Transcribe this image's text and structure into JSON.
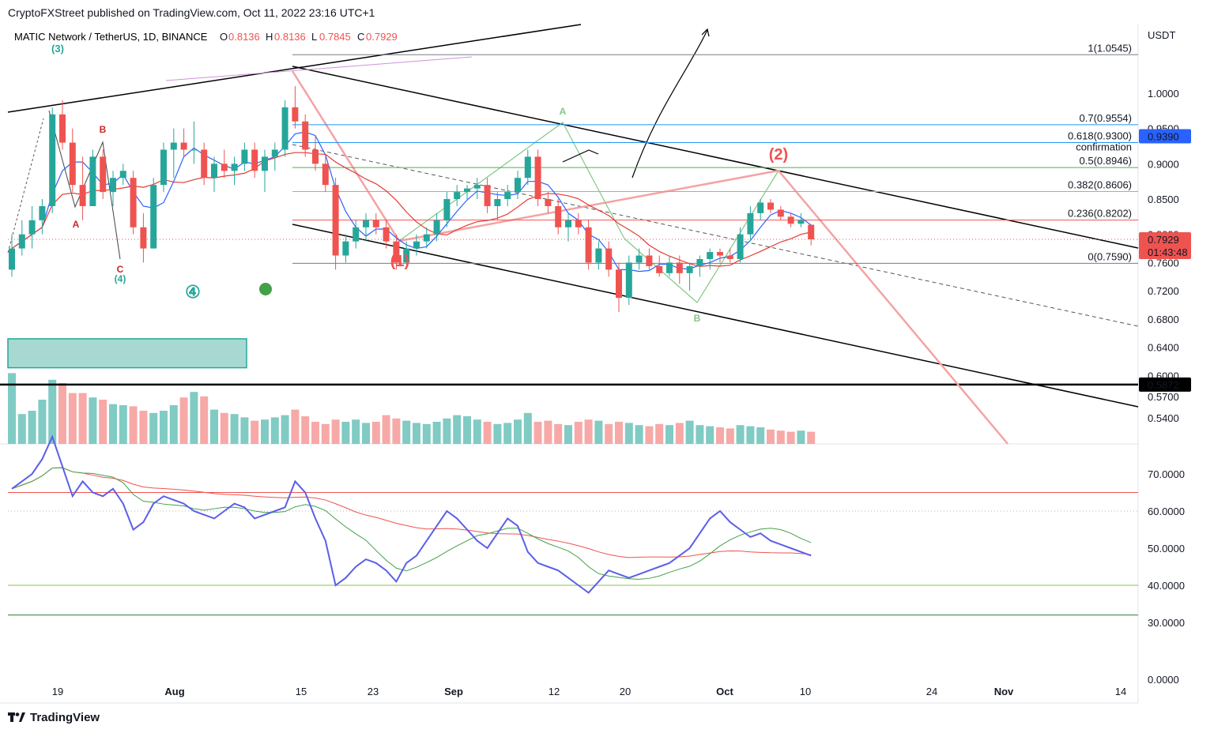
{
  "header": {
    "published": "CryptoFXStreet published on TradingView.com, Oct 11, 2022 23:16 UTC+1"
  },
  "legend": {
    "symbol": "MATIC Network / TetherUS, 1D, BINANCE",
    "o_label": "O",
    "o_value": "0.8136",
    "h_label": "H",
    "h_value": "0.8136",
    "l_label": "L",
    "l_value": "0.7845",
    "c_label": "C",
    "c_value": "0.7929"
  },
  "currency": "USDT",
  "footer": {
    "brand": "TradingView"
  },
  "colors": {
    "up": "#26a69a",
    "down": "#ef5350",
    "vol_up": "#80cbc4",
    "vol_down": "#f7a9a7",
    "rsi": "#5b5fe8"
  },
  "chart_data": {
    "type": "candlestick",
    "title": "MATIC Network / TetherUS, 1D, BINANCE",
    "price_axis": {
      "ticks": [
        "1.0000",
        "0.9500",
        "0.9000",
        "0.8500",
        "0.8000",
        "0.7600",
        "0.7200",
        "0.6800",
        "0.6400",
        "0.6000",
        "0.5700",
        "0.5400"
      ],
      "tick_values": [
        1.0,
        0.95,
        0.9,
        0.85,
        0.8,
        0.76,
        0.72,
        0.68,
        0.64,
        0.6,
        0.57,
        0.54
      ]
    },
    "date_axis": [
      "19",
      "Aug",
      "15",
      "23",
      "Sep",
      "12",
      "20",
      "Oct",
      "10",
      "24",
      "Nov",
      "14"
    ],
    "price_badges": [
      {
        "label": "0.9390",
        "value": 0.939,
        "color": "#2962ff"
      },
      {
        "label": "0.7929",
        "value": 0.7929,
        "color": "#ef5350"
      },
      {
        "label": "01:43:48",
        "value": 0.7929,
        "color": "#ef5350"
      },
      {
        "label": "0.5872",
        "value": 0.5872,
        "color": "#000000"
      }
    ],
    "fib_levels": [
      {
        "label": "1(1.0545)",
        "value": 1.0545,
        "color": "#787b86"
      },
      {
        "label": "0.7(0.9554)",
        "value": 0.9554,
        "color": "#2196f3"
      },
      {
        "label": "0.618(0.9300)",
        "value": 0.93,
        "color": "#2196f3"
      },
      {
        "label": "0.5(0.8946)",
        "value": 0.8946,
        "color": "#4caf50"
      },
      {
        "label": "0.382(0.8606)",
        "value": 0.8606,
        "color": "#81c784"
      },
      {
        "label": "0.236(0.8202)",
        "value": 0.8202,
        "color": "#ef5350"
      },
      {
        "label": "0(0.7590)",
        "value": 0.759,
        "color": "#787b86"
      }
    ],
    "confirmation_label": "confirmation",
    "wave_labels": [
      {
        "text": "(3)",
        "color": "#26a69a"
      },
      {
        "text": "A",
        "color": "#c62828"
      },
      {
        "text": "B",
        "color": "#c62828"
      },
      {
        "text": "C",
        "color": "#c62828"
      },
      {
        "text": "(4)",
        "color": "#26a69a"
      },
      {
        "text": "(1)",
        "color": "#ef5350"
      },
      {
        "text": "(2)",
        "color": "#ef5350"
      },
      {
        "text": "A",
        "color": "#81c784"
      },
      {
        "text": "B",
        "color": "#81c784"
      },
      {
        "text": "④",
        "color": "#26a69a"
      }
    ],
    "candles": [
      [
        0.75,
        0.8,
        0.74,
        0.78
      ],
      [
        0.78,
        0.82,
        0.77,
        0.8
      ],
      [
        0.8,
        0.84,
        0.78,
        0.82
      ],
      [
        0.82,
        0.85,
        0.8,
        0.84
      ],
      [
        0.84,
        0.98,
        0.83,
        0.97
      ],
      [
        0.97,
        0.99,
        0.92,
        0.93
      ],
      [
        0.93,
        0.95,
        0.86,
        0.87
      ],
      [
        0.87,
        0.91,
        0.82,
        0.84
      ],
      [
        0.84,
        0.92,
        0.84,
        0.91
      ],
      [
        0.91,
        0.92,
        0.85,
        0.86
      ],
      [
        0.86,
        0.89,
        0.84,
        0.88
      ],
      [
        0.88,
        0.9,
        0.87,
        0.89
      ],
      [
        0.88,
        0.89,
        0.8,
        0.81
      ],
      [
        0.81,
        0.83,
        0.76,
        0.78
      ],
      [
        0.78,
        0.88,
        0.78,
        0.87
      ],
      [
        0.87,
        0.93,
        0.86,
        0.92
      ],
      [
        0.92,
        0.95,
        0.88,
        0.93
      ],
      [
        0.93,
        0.95,
        0.91,
        0.92
      ],
      [
        0.92,
        0.96,
        0.9,
        0.92
      ],
      [
        0.92,
        0.93,
        0.87,
        0.88
      ],
      [
        0.88,
        0.91,
        0.86,
        0.9
      ],
      [
        0.9,
        0.92,
        0.88,
        0.89
      ],
      [
        0.89,
        0.91,
        0.87,
        0.9
      ],
      [
        0.9,
        0.93,
        0.89,
        0.92
      ],
      [
        0.92,
        0.93,
        0.88,
        0.89
      ],
      [
        0.89,
        0.92,
        0.86,
        0.91
      ],
      [
        0.91,
        0.93,
        0.89,
        0.92
      ],
      [
        0.92,
        0.99,
        0.91,
        0.98
      ],
      [
        0.98,
        1.01,
        0.95,
        0.96
      ],
      [
        0.96,
        0.97,
        0.91,
        0.92
      ],
      [
        0.92,
        0.94,
        0.89,
        0.9
      ],
      [
        0.9,
        0.91,
        0.86,
        0.87
      ],
      [
        0.87,
        0.88,
        0.75,
        0.77
      ],
      [
        0.77,
        0.8,
        0.76,
        0.79
      ],
      [
        0.79,
        0.82,
        0.78,
        0.81
      ],
      [
        0.81,
        0.83,
        0.79,
        0.82
      ],
      [
        0.82,
        0.83,
        0.8,
        0.81
      ],
      [
        0.81,
        0.82,
        0.78,
        0.79
      ],
      [
        0.79,
        0.8,
        0.75,
        0.76
      ],
      [
        0.76,
        0.79,
        0.76,
        0.78
      ],
      [
        0.78,
        0.8,
        0.77,
        0.79
      ],
      [
        0.79,
        0.81,
        0.78,
        0.8
      ],
      [
        0.8,
        0.83,
        0.79,
        0.82
      ],
      [
        0.82,
        0.86,
        0.81,
        0.85
      ],
      [
        0.85,
        0.87,
        0.84,
        0.86
      ],
      [
        0.86,
        0.87,
        0.85,
        0.865
      ],
      [
        0.865,
        0.88,
        0.85,
        0.87
      ],
      [
        0.87,
        0.88,
        0.83,
        0.84
      ],
      [
        0.84,
        0.86,
        0.82,
        0.85
      ],
      [
        0.85,
        0.87,
        0.84,
        0.86
      ],
      [
        0.86,
        0.89,
        0.85,
        0.88
      ],
      [
        0.88,
        0.92,
        0.87,
        0.91
      ],
      [
        0.91,
        0.92,
        0.84,
        0.85
      ],
      [
        0.85,
        0.86,
        0.83,
        0.84
      ],
      [
        0.84,
        0.85,
        0.8,
        0.81
      ],
      [
        0.81,
        0.83,
        0.79,
        0.82
      ],
      [
        0.82,
        0.83,
        0.8,
        0.81
      ],
      [
        0.81,
        0.82,
        0.75,
        0.76
      ],
      [
        0.76,
        0.79,
        0.75,
        0.78
      ],
      [
        0.78,
        0.79,
        0.74,
        0.75
      ],
      [
        0.75,
        0.76,
        0.69,
        0.71
      ],
      [
        0.71,
        0.77,
        0.7,
        0.76
      ],
      [
        0.76,
        0.78,
        0.75,
        0.77
      ],
      [
        0.77,
        0.78,
        0.75,
        0.755
      ],
      [
        0.755,
        0.77,
        0.74,
        0.745
      ],
      [
        0.745,
        0.77,
        0.74,
        0.76
      ],
      [
        0.76,
        0.77,
        0.73,
        0.745
      ],
      [
        0.745,
        0.76,
        0.72,
        0.755
      ],
      [
        0.755,
        0.77,
        0.74,
        0.765
      ],
      [
        0.765,
        0.78,
        0.75,
        0.775
      ],
      [
        0.775,
        0.78,
        0.76,
        0.77
      ],
      [
        0.77,
        0.78,
        0.76,
        0.765
      ],
      [
        0.765,
        0.81,
        0.76,
        0.8
      ],
      [
        0.8,
        0.84,
        0.79,
        0.83
      ],
      [
        0.83,
        0.85,
        0.82,
        0.845
      ],
      [
        0.845,
        0.85,
        0.83,
        0.835
      ],
      [
        0.835,
        0.84,
        0.82,
        0.825
      ],
      [
        0.825,
        0.83,
        0.81,
        0.815
      ],
      [
        0.815,
        0.83,
        0.81,
        0.82
      ],
      [
        0.8136,
        0.8136,
        0.7845,
        0.7929
      ]
    ],
    "volume_bars": [
      0.64,
      0.27,
      0.3,
      0.4,
      0.58,
      0.55,
      0.46,
      0.46,
      0.42,
      0.4,
      0.36,
      0.35,
      0.34,
      0.3,
      0.28,
      0.3,
      0.35,
      0.42,
      0.47,
      0.43,
      0.31,
      0.28,
      0.27,
      0.24,
      0.21,
      0.22,
      0.24,
      0.26,
      0.31,
      0.25,
      0.2,
      0.18,
      0.22,
      0.2,
      0.22,
      0.19,
      0.2,
      0.26,
      0.23,
      0.21,
      0.19,
      0.18,
      0.2,
      0.23,
      0.26,
      0.25,
      0.22,
      0.2,
      0.18,
      0.19,
      0.22,
      0.28,
      0.2,
      0.21,
      0.18,
      0.17,
      0.2,
      0.22,
      0.21,
      0.18,
      0.2,
      0.19,
      0.17,
      0.16,
      0.18,
      0.17,
      0.19,
      0.21,
      0.17,
      0.16,
      0.15,
      0.14,
      0.17,
      0.16,
      0.15,
      0.13,
      0.12,
      0.11,
      0.12,
      0.11
    ],
    "rsi": {
      "levels": [
        70,
        60,
        50,
        40,
        30,
        0
      ],
      "tick_labels": [
        "70.0000",
        "60.0000",
        "50.0000",
        "40.0000",
        "30.0000",
        "0.0000"
      ],
      "overbought": 65,
      "oversold": 40,
      "low_line": 32,
      "values": [
        66,
        68,
        70,
        74,
        80,
        72,
        64,
        68,
        65,
        64,
        66,
        62,
        55,
        57,
        62,
        64,
        63,
        62,
        60,
        59,
        58,
        60,
        62,
        61,
        58,
        59,
        60,
        61,
        68,
        65,
        58,
        52,
        40,
        42,
        45,
        47,
        46,
        44,
        41,
        46,
        48,
        52,
        56,
        60,
        58,
        55,
        52,
        50,
        54,
        58,
        56,
        49,
        46,
        45,
        44,
        42,
        40,
        38,
        41,
        44,
        43,
        42,
        43,
        44,
        45,
        46,
        48,
        50,
        54,
        58,
        60,
        57,
        55,
        53,
        54,
        52,
        51,
        50,
        49,
        48
      ]
    }
  }
}
